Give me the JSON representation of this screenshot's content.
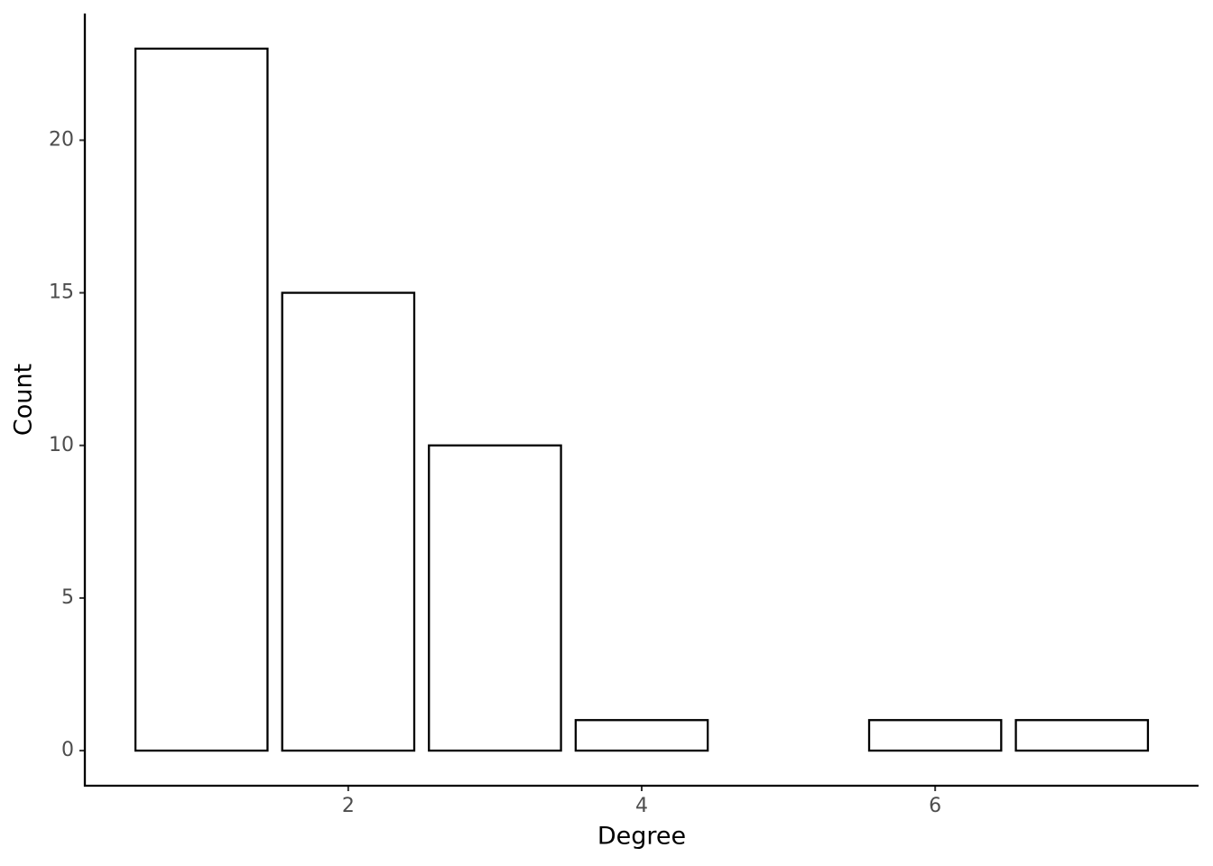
{
  "chart_data": {
    "type": "bar",
    "x": [
      1,
      2,
      3,
      4,
      6,
      7
    ],
    "values": [
      23,
      15,
      10,
      1,
      1,
      1
    ],
    "color": "#ffffff",
    "x_label": "Degree",
    "y_label": "Count",
    "xlim": [
      0.205,
      7.795
    ],
    "xticks": [
      2,
      4,
      6
    ],
    "ylim": [
      -1.15,
      24.15
    ],
    "yticks": [
      0,
      5,
      10,
      15,
      20
    ],
    "grid": false
  }
}
